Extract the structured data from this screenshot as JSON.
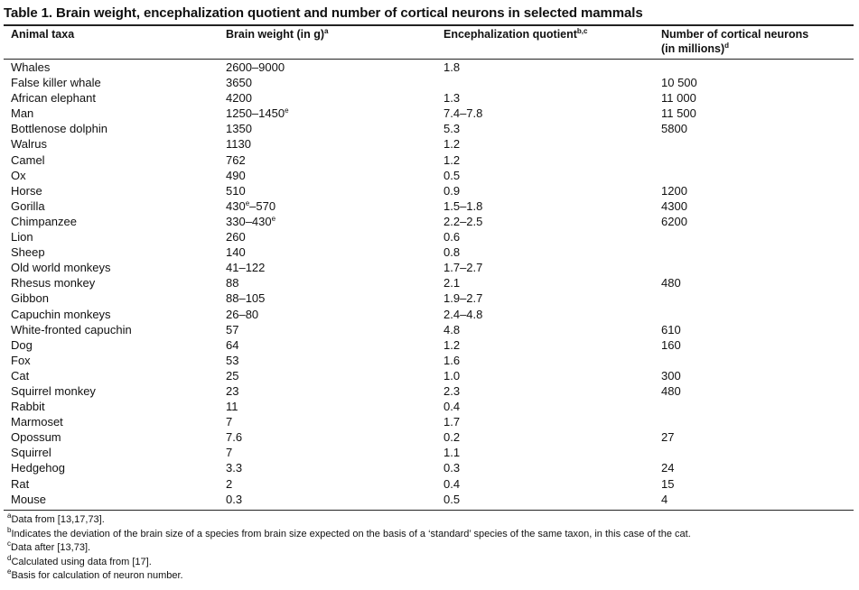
{
  "table": {
    "title": "Table 1. Brain weight, encephalization quotient and number of cortical neurons in selected mammals",
    "headers": {
      "animal": "Animal taxa",
      "brain_weight": "Brain weight (in g)",
      "brain_weight_sup": "a",
      "eq": "Encephalization quotient",
      "eq_sup": "b,c",
      "neurons_line1": "Number of cortical neurons",
      "neurons_line2": "(in millions)",
      "neurons_sup": "d"
    },
    "rows": [
      {
        "animal": "Whales",
        "weight": "2600–9000",
        "eq": "1.8",
        "neurons": ""
      },
      {
        "animal": "False killer whale",
        "weight": "3650",
        "eq": "",
        "neurons": "10 500"
      },
      {
        "animal": "African elephant",
        "weight": "4200",
        "eq": "1.3",
        "neurons": "11 000"
      },
      {
        "animal": "Man",
        "weight": "1250–1450",
        "weight_sup": "e",
        "eq": "7.4–7.8",
        "neurons": "11 500"
      },
      {
        "animal": "Bottlenose dolphin",
        "weight": "1350",
        "eq": "5.3",
        "neurons": "5800"
      },
      {
        "animal": "Walrus",
        "weight": "1130",
        "eq": "1.2",
        "neurons": ""
      },
      {
        "animal": "Camel",
        "weight": "762",
        "eq": "1.2",
        "neurons": ""
      },
      {
        "animal": "Ox",
        "weight": "490",
        "eq": "0.5",
        "neurons": ""
      },
      {
        "animal": "Horse",
        "weight": "510",
        "eq": "0.9",
        "neurons": "1200"
      },
      {
        "animal": "Gorilla",
        "weight": "430",
        "weight_sup": "e",
        "weight_tail": "–570",
        "eq": "1.5–1.8",
        "neurons": "4300"
      },
      {
        "animal": "Chimpanzee",
        "weight": "330–430",
        "weight_sup": "e",
        "eq": "2.2–2.5",
        "neurons": "6200"
      },
      {
        "animal": "Lion",
        "weight": "260",
        "eq": "0.6",
        "neurons": ""
      },
      {
        "animal": "Sheep",
        "weight": "140",
        "eq": "0.8",
        "neurons": ""
      },
      {
        "animal": "Old world monkeys",
        "weight": "41–122",
        "eq": "1.7–2.7",
        "neurons": ""
      },
      {
        "animal": "Rhesus monkey",
        "weight": "88",
        "eq": "2.1",
        "neurons": "480"
      },
      {
        "animal": "Gibbon",
        "weight": "88–105",
        "eq": "1.9–2.7",
        "neurons": ""
      },
      {
        "animal": "Capuchin monkeys",
        "weight": "26–80",
        "eq": "2.4–4.8",
        "neurons": ""
      },
      {
        "animal": "White-fronted capuchin",
        "weight": "57",
        "eq": "4.8",
        "neurons": "610"
      },
      {
        "animal": "Dog",
        "weight": "64",
        "eq": "1.2",
        "neurons": "160"
      },
      {
        "animal": "Fox",
        "weight": "53",
        "eq": "1.6",
        "neurons": ""
      },
      {
        "animal": "Cat",
        "weight": "25",
        "eq": "1.0",
        "neurons": "300"
      },
      {
        "animal": "Squirrel monkey",
        "weight": "23",
        "eq": "2.3",
        "neurons": "480"
      },
      {
        "animal": "Rabbit",
        "weight": "11",
        "eq": "0.4",
        "neurons": ""
      },
      {
        "animal": "Marmoset",
        "weight": "7",
        "eq": "1.7",
        "neurons": ""
      },
      {
        "animal": "Opossum",
        "weight": "7.6",
        "eq": "0.2",
        "neurons": "27"
      },
      {
        "animal": "Squirrel",
        "weight": "7",
        "eq": "1.1",
        "neurons": ""
      },
      {
        "animal": "Hedgehog",
        "weight": "3.3",
        "eq": "0.3",
        "neurons": "24"
      },
      {
        "animal": "Rat",
        "weight": "2",
        "eq": "0.4",
        "neurons": "15"
      },
      {
        "animal": "Mouse",
        "weight": "0.3",
        "eq": "0.5",
        "neurons": "4"
      }
    ]
  },
  "footnotes": [
    {
      "mark": "a",
      "text": "Data from [13,17,73]."
    },
    {
      "mark": "b",
      "text": "Indicates the deviation of the brain size of a species from brain size expected on the basis of a ‘standard’ species of the same taxon, in this case of the cat."
    },
    {
      "mark": "c",
      "text": "Data after [13,73]."
    },
    {
      "mark": "d",
      "text": "Calculated using data from [17]."
    },
    {
      "mark": "e",
      "text": "Basis for calculation of neuron number."
    }
  ]
}
